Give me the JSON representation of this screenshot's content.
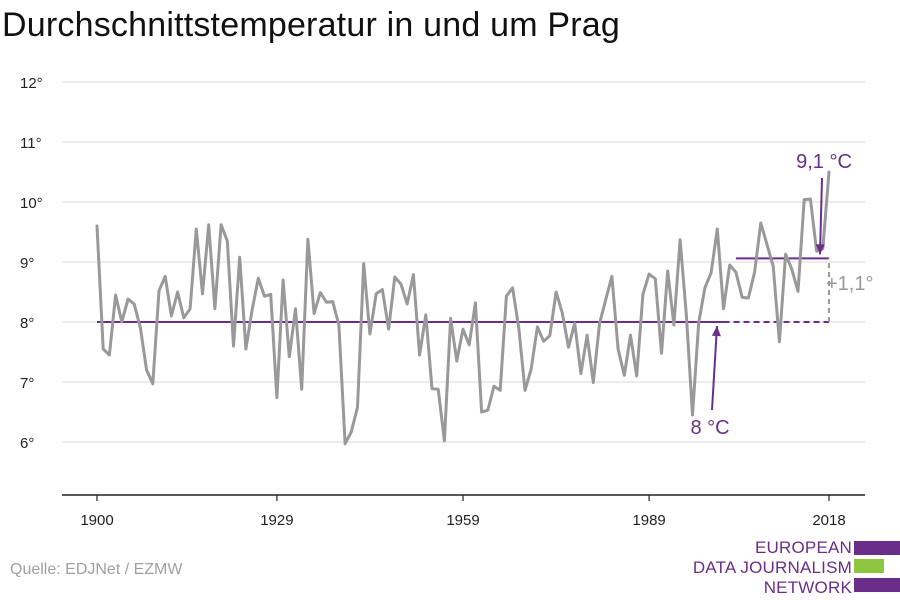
{
  "title": "Durchschnittstemperatur in und um Prag",
  "source": "Quelle: EDJNet / EZMW",
  "logo": {
    "lines": [
      "EUROPEAN",
      "DATA JOURNALISM",
      "NETWORK"
    ],
    "colors": {
      "text": "#6b2d8a",
      "bar1": "#6b2d8a",
      "bar2": "#8dc63f",
      "bar3": "#6b2d8a"
    }
  },
  "chart_data": {
    "type": "line",
    "ylim": [
      5,
      12.5
    ],
    "xlim": [
      1900,
      2018
    ],
    "ytick_values": [
      6,
      7,
      8,
      9,
      10,
      11,
      12
    ],
    "ytick_labels": [
      "6°",
      "7°",
      "8°",
      "9°",
      "10°",
      "11°",
      "12°"
    ],
    "xtick_values": [
      1900,
      1929,
      1959,
      1989,
      2018
    ],
    "xtick_labels": [
      "1900",
      "1929",
      "1959",
      "1989",
      "2018"
    ],
    "grid": "horizontal",
    "series": [
      {
        "color": "#999999",
        "x": [
          1900,
          1901,
          1902,
          1903,
          1904,
          1905,
          1906,
          1907,
          1908,
          1909,
          1910,
          1911,
          1912,
          1913,
          1914,
          1915,
          1916,
          1917,
          1918,
          1919,
          1920,
          1921,
          1922,
          1923,
          1924,
          1925,
          1926,
          1927,
          1928,
          1929,
          1930,
          1931,
          1932,
          1933,
          1934,
          1935,
          1936,
          1937,
          1938,
          1939,
          1940,
          1941,
          1942,
          1943,
          1944,
          1945,
          1946,
          1947,
          1948,
          1949,
          1950,
          1951,
          1952,
          1953,
          1954,
          1955,
          1956,
          1957,
          1958,
          1959,
          1960,
          1961,
          1962,
          1963,
          1964,
          1965,
          1966,
          1967,
          1968,
          1969,
          1970,
          1971,
          1972,
          1973,
          1974,
          1975,
          1976,
          1977,
          1978,
          1979,
          1980,
          1981,
          1982,
          1983,
          1984,
          1985,
          1986,
          1987,
          1988,
          1989,
          1990,
          1991,
          1992,
          1993,
          1994,
          1995,
          1996,
          1997,
          1998,
          1999,
          2000,
          2001,
          2002,
          2003,
          2004,
          2005,
          2006,
          2007,
          2008,
          2009,
          2010,
          2011,
          2012,
          2013,
          2014,
          2015,
          2016,
          2017,
          2018
        ],
        "y": [
          9.6,
          7.55,
          7.45,
          8.45,
          8.0,
          8.38,
          8.3,
          7.9,
          7.2,
          6.97,
          8.52,
          8.76,
          8.1,
          8.5,
          8.07,
          8.22,
          9.55,
          8.47,
          9.62,
          8.22,
          9.62,
          9.35,
          7.6,
          9.08,
          7.55,
          8.2,
          8.73,
          8.43,
          8.46,
          6.74,
          8.7,
          7.42,
          8.22,
          6.88,
          9.38,
          8.14,
          8.49,
          8.33,
          8.34,
          7.95,
          5.97,
          6.17,
          6.58,
          8.97,
          7.8,
          8.47,
          8.54,
          7.88,
          8.75,
          8.63,
          8.3,
          8.79,
          7.45,
          8.12,
          6.89,
          6.88,
          6.02,
          8.06,
          7.35,
          7.88,
          7.62,
          8.32,
          6.5,
          6.53,
          6.93,
          6.86,
          8.43,
          8.57,
          7.9,
          6.86,
          7.22,
          7.92,
          7.68,
          7.77,
          8.5,
          8.15,
          7.58,
          7.98,
          7.14,
          7.78,
          6.99,
          7.97,
          8.37,
          8.76,
          7.55,
          7.11,
          7.78,
          7.1,
          8.46,
          8.8,
          8.72,
          7.48,
          8.85,
          7.95,
          9.37,
          8.13,
          6.45,
          7.99,
          8.57,
          8.82,
          9.55,
          8.22,
          8.95,
          8.83,
          8.41,
          8.4,
          8.83,
          9.65,
          9.29,
          8.93,
          7.67,
          9.13,
          8.88,
          8.51,
          10.04,
          10.05,
          9.18,
          9.22,
          10.5
        ]
      }
    ],
    "baseline": {
      "label": "8 °C",
      "value": 8.0,
      "solid_x": [
        1900,
        2001
      ],
      "dashed_x": [
        2001,
        2018
      ],
      "color": "#6b2d8a"
    },
    "recent_mean": {
      "label": "9,1 °C",
      "value": 9.06,
      "x": [
        2003,
        2018
      ],
      "color": "#6b2d8a"
    },
    "difference": {
      "label": "+1,1°",
      "x": 2018,
      "from": 8.0,
      "to": 9.06,
      "color": "#999999"
    },
    "colors": {
      "axis": "#222222",
      "grid": "#e0e0e0",
      "tick_label": "#222222",
      "accent": "#6b2d8a",
      "series": "#999999"
    }
  }
}
